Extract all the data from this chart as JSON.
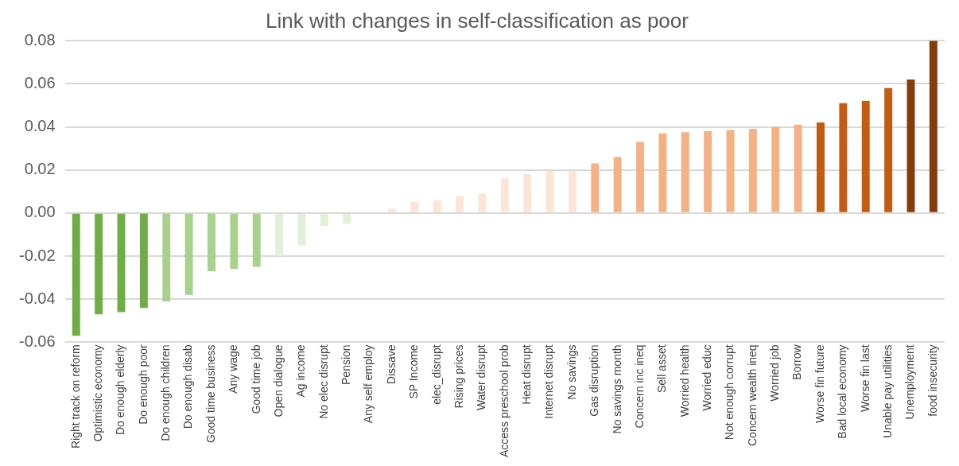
{
  "chart_data": {
    "type": "bar",
    "title": "Link with changes in self-classification as poor",
    "categories": [
      "Right track on reform",
      "Optimistic economy",
      "Do enough elderly",
      "Do enough poor",
      "Do enough children",
      "Do enough disab",
      "Good time business",
      "Any wage",
      "Good time job",
      "Open dialogue",
      "Ag income",
      "No elec disrupt",
      "Pension",
      "Any self employ",
      "Dissave",
      "SP Income",
      "elec_disrupt",
      "Rising prices",
      "Water disrupt",
      "Access preschool prob",
      "Heat disrupt",
      "Internet disrupt",
      "No savings",
      "Gas disruption",
      "No savings month",
      "Concern inc ineq",
      "Sell asset",
      "Worried health",
      "Worried educ",
      "Not enough corrupt",
      "Concern wealth ineq",
      "Worried job",
      "Borrow",
      "Worse fin future",
      "Bad local economy",
      "Worse fin last",
      "Unable pay utilities",
      "Unemployment",
      "food insecurity"
    ],
    "values": [
      -0.057,
      -0.047,
      -0.046,
      -0.044,
      -0.041,
      -0.038,
      -0.027,
      -0.026,
      -0.025,
      -0.02,
      -0.015,
      -0.006,
      -0.005,
      -0.0003,
      0.002,
      0.005,
      0.006,
      0.008,
      0.009,
      0.016,
      0.018,
      0.0195,
      0.0195,
      0.023,
      0.026,
      0.033,
      0.037,
      0.0375,
      0.038,
      0.0385,
      0.039,
      0.04,
      0.041,
      0.042,
      0.051,
      0.052,
      0.058,
      0.062,
      0.08
    ],
    "colors": [
      "#70ad47",
      "#70ad47",
      "#70ad47",
      "#70ad47",
      "#a9d18e",
      "#a9d18e",
      "#a9d18e",
      "#a9d18e",
      "#a9d18e",
      "#e2efd9",
      "#e2efd9",
      "#e2efd9",
      "#e2efd9",
      "#d9d2e0",
      "#fbe5d6",
      "#fbe5d6",
      "#fbe5d6",
      "#fbe5d6",
      "#fbe5d6",
      "#fbe5d6",
      "#fbe5d6",
      "#fbe5d6",
      "#fbe5d6",
      "#f4b183",
      "#f4b183",
      "#f4b183",
      "#f4b183",
      "#f4b183",
      "#f4b183",
      "#f4b183",
      "#f4b183",
      "#f4b183",
      "#f4b183",
      "#c55a11",
      "#c55a11",
      "#c55a11",
      "#c55a11",
      "#843c0c",
      "#843c0c"
    ],
    "ylim": [
      -0.06,
      0.08
    ],
    "yticks": [
      {
        "value": -0.06,
        "label": "-0.06"
      },
      {
        "value": -0.04,
        "label": "-0.04"
      },
      {
        "value": -0.02,
        "label": "-0.02"
      },
      {
        "value": 0,
        "label": "0.00"
      },
      {
        "value": 0.02,
        "label": "0.02"
      },
      {
        "value": 0.04,
        "label": "0.04"
      },
      {
        "value": 0.06,
        "label": "0.06"
      },
      {
        "value": 0.08,
        "label": "0.08"
      }
    ],
    "grid": "y",
    "legend": false
  }
}
